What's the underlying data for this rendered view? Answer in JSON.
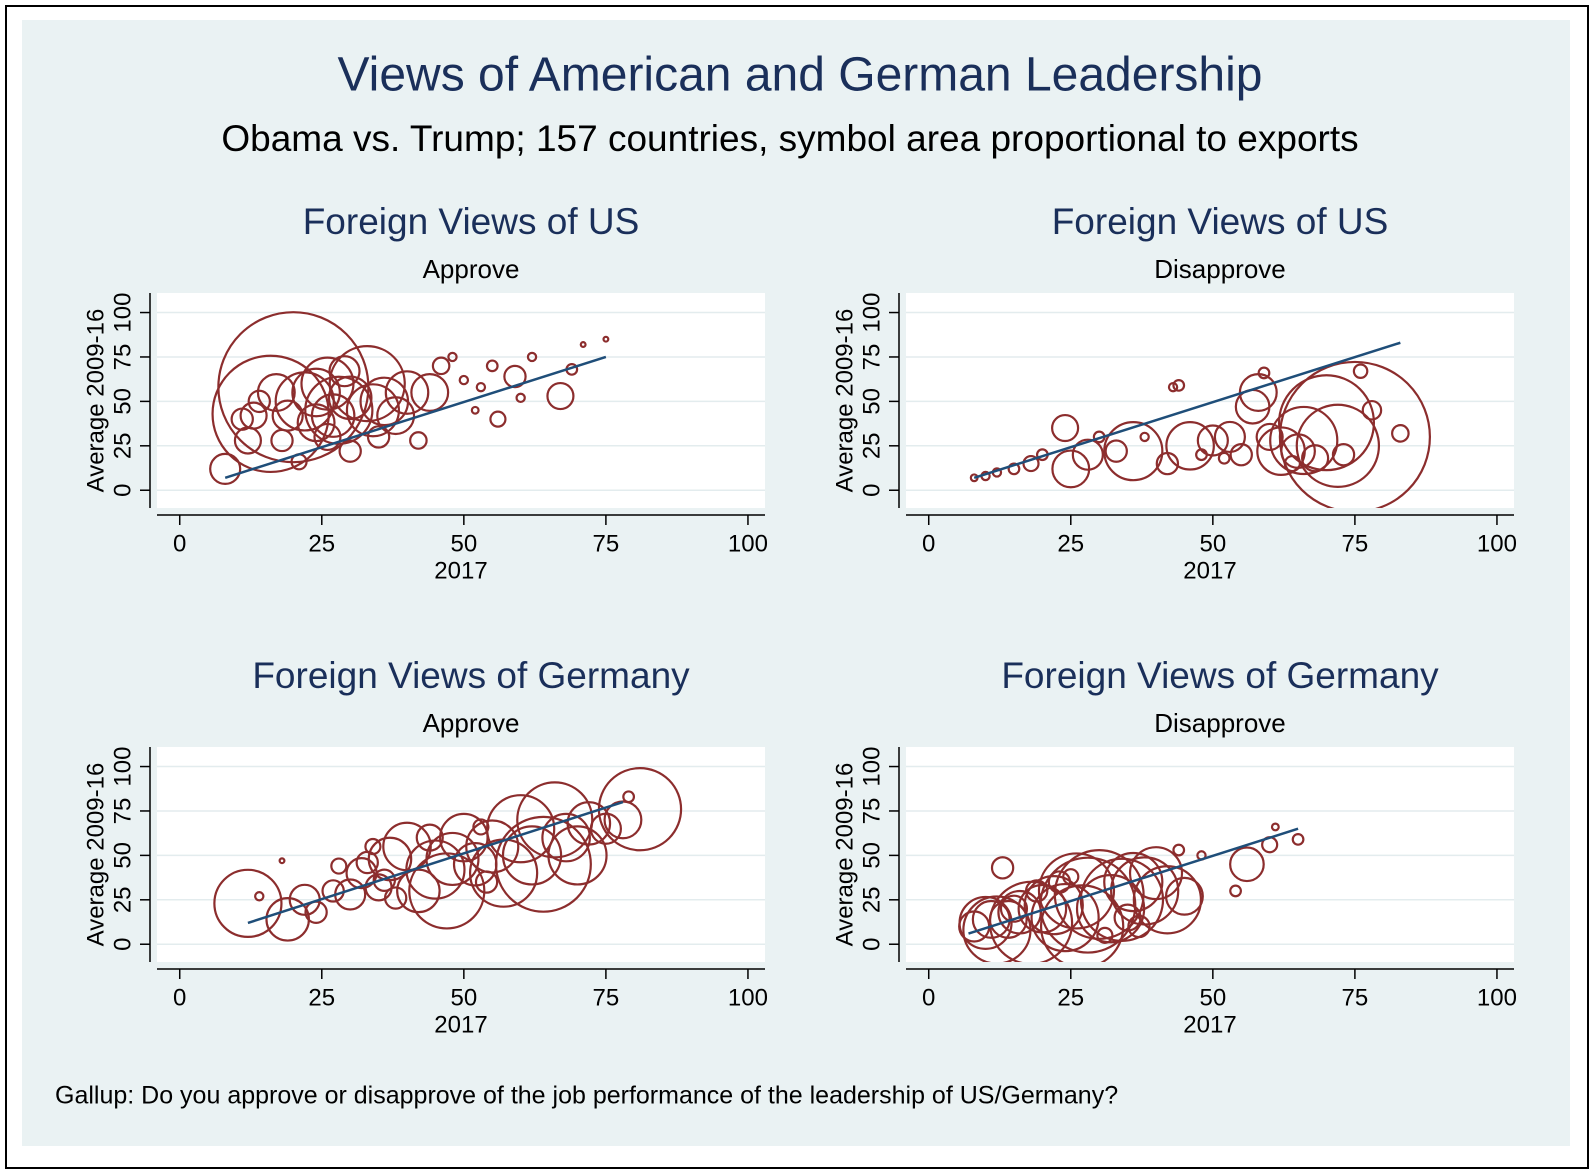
{
  "title": "Views of American and German Leadership",
  "subtitle": "Obama vs. Trump; 157 countries, symbol area proportional to exports",
  "note": "Gallup: Do you approve or disapprove of the job performance of the leadership of US/Germany?",
  "chart_data": [
    {
      "type": "scatter",
      "title": "Foreign Views of US",
      "subtitle": "Approve",
      "xlabel": "2017",
      "ylabel": "Average 2009-16",
      "xlim": [
        -4,
        103
      ],
      "ylim": [
        -10,
        111
      ],
      "xticks": [
        0,
        25,
        50,
        75,
        100
      ],
      "yticks": [
        0,
        25,
        50,
        75,
        100
      ],
      "grid": true,
      "series": [
        {
          "color": "#8c2d2d",
          "x": [
            20,
            16,
            8,
            13,
            17,
            22,
            24,
            26,
            28,
            30,
            33,
            34,
            36,
            38,
            40,
            44,
            29,
            24,
            26,
            30,
            18,
            21,
            12,
            11,
            14,
            46,
            48,
            50,
            53,
            55,
            56,
            59,
            62,
            67,
            69,
            71,
            75,
            52,
            60,
            42,
            35,
            27,
            19
          ],
          "values": [
            58,
            43,
            12,
            42,
            55,
            50,
            55,
            60,
            45,
            52,
            60,
            45,
            50,
            42,
            55,
            55,
            67,
            38,
            30,
            22,
            28,
            16,
            28,
            40,
            50,
            70,
            75,
            62,
            58,
            70,
            40,
            64,
            75,
            53,
            68,
            82,
            85,
            45,
            52,
            28,
            30,
            42,
            42
          ],
          "size": [
            100,
            60,
            4,
            3,
            6,
            15,
            10,
            12,
            20,
            8,
            25,
            12,
            10,
            6,
            8,
            6,
            4,
            6,
            3,
            2,
            2,
            1,
            3,
            2,
            2,
            1.2,
            0.3,
            0.3,
            0.3,
            0.5,
            1,
            2,
            0.3,
            3,
            0.5,
            0.1,
            0.1,
            0.2,
            0.3,
            1.2,
            2,
            8,
            4
          ]
        }
      ],
      "fit": {
        "color": "#1f4e79",
        "x": [
          8,
          75
        ],
        "values": [
          7,
          75
        ]
      }
    },
    {
      "type": "scatter",
      "title": "Foreign Views of US",
      "subtitle": "Disapprove",
      "xlabel": "2017",
      "ylabel": "Average 2009-16",
      "xlim": [
        -4,
        103
      ],
      "ylim": [
        -10,
        111
      ],
      "xticks": [
        0,
        25,
        50,
        75,
        100
      ],
      "yticks": [
        0,
        25,
        50,
        75,
        100
      ],
      "grid": true,
      "series": [
        {
          "color": "#8c2d2d",
          "x": [
            75,
            70,
            72,
            66,
            62,
            58,
            57,
            46,
            36,
            25,
            24,
            28,
            33,
            42,
            50,
            53,
            55,
            60,
            65,
            68,
            78,
            83,
            76,
            59,
            44,
            43,
            18,
            15,
            12,
            10,
            8,
            20,
            30,
            38,
            48,
            64,
            73,
            52
          ],
          "values": [
            30,
            38,
            25,
            28,
            22,
            55,
            47,
            25,
            22,
            12,
            35,
            20,
            22,
            15,
            28,
            30,
            20,
            30,
            22,
            18,
            45,
            32,
            67,
            66,
            59,
            58,
            15,
            12,
            10,
            8,
            7,
            20,
            30,
            30,
            20,
            15,
            20,
            18
          ],
          "size": [
            100,
            40,
            30,
            20,
            10,
            6,
            5,
            10,
            15,
            6,
            3,
            4,
            2,
            2,
            4,
            4,
            2,
            3,
            5,
            3,
            1.5,
            1.2,
            0.8,
            0.5,
            0.5,
            0.3,
            1,
            0.5,
            0.3,
            0.3,
            0.2,
            0.5,
            0.5,
            0.3,
            0.5,
            1,
            2,
            0.5
          ]
        }
      ],
      "fit": {
        "color": "#1f4e79",
        "x": [
          8,
          83
        ],
        "values": [
          7,
          83
        ]
      }
    },
    {
      "type": "scatter",
      "title": "Foreign Views of Germany",
      "subtitle": "Approve",
      "xlabel": "2017",
      "ylabel": "Average 2009-16",
      "xlim": [
        -4,
        103
      ],
      "ylim": [
        -10,
        111
      ],
      "xticks": [
        0,
        25,
        50,
        75,
        100
      ],
      "yticks": [
        0,
        25,
        50,
        75,
        100
      ],
      "grid": true,
      "series": [
        {
          "color": "#8c2d2d",
          "x": [
            12,
            19,
            22,
            24,
            27,
            30,
            32,
            35,
            37,
            40,
            42,
            45,
            47,
            48,
            50,
            52,
            55,
            57,
            60,
            62,
            64,
            66,
            68,
            70,
            72,
            75,
            78,
            81,
            14,
            18,
            28,
            33,
            36,
            38,
            44,
            53,
            79,
            54,
            34
          ],
          "values": [
            23,
            14,
            25,
            18,
            30,
            28,
            40,
            32,
            48,
            55,
            30,
            42,
            30,
            48,
            60,
            45,
            55,
            40,
            65,
            50,
            45,
            70,
            60,
            50,
            68,
            65,
            70,
            76,
            27,
            47,
            44,
            46,
            36,
            26,
            60,
            66,
            83,
            35,
            55
          ],
          "size": [
            20,
            8,
            4,
            2,
            2,
            4,
            4,
            3,
            8,
            10,
            8,
            15,
            25,
            12,
            10,
            8,
            12,
            20,
            20,
            15,
            40,
            25,
            10,
            15,
            8,
            4,
            6,
            30,
            0.3,
            0.1,
            1,
            2,
            2,
            2,
            3,
            1,
            0.5,
            2,
            1
          ]
        }
      ],
      "fit": {
        "color": "#1f4e79",
        "x": [
          12,
          78
        ],
        "values": [
          12,
          80
        ]
      }
    },
    {
      "type": "scatter",
      "title": "Foreign Views of Germany",
      "subtitle": "Disapprove",
      "xlabel": "2017",
      "ylabel": "Average 2009-16",
      "xlim": [
        -4,
        103
      ],
      "ylim": [
        -10,
        111
      ],
      "xticks": [
        0,
        25,
        50,
        75,
        100
      ],
      "yticks": [
        0,
        25,
        50,
        75,
        100
      ],
      "grid": true,
      "series": [
        {
          "color": "#8c2d2d",
          "x": [
            8,
            10,
            12,
            14,
            16,
            18,
            20,
            22,
            24,
            26,
            27,
            28,
            30,
            32,
            34,
            36,
            38,
            40,
            42,
            45,
            13,
            15,
            11,
            19,
            23,
            35,
            37,
            44,
            54,
            56,
            60,
            65,
            61,
            48,
            31,
            25
          ],
          "values": [
            10,
            12,
            8,
            14,
            18,
            12,
            20,
            22,
            15,
            30,
            10,
            22,
            28,
            20,
            25,
            35,
            30,
            40,
            25,
            27,
            43,
            20,
            14,
            30,
            35,
            15,
            10,
            53,
            30,
            45,
            56,
            59,
            66,
            50,
            5,
            38
          ],
          "size": [
            4,
            12,
            20,
            6,
            8,
            30,
            10,
            15,
            20,
            25,
            30,
            40,
            35,
            20,
            30,
            15,
            20,
            12,
            20,
            6,
            2,
            3,
            6,
            2,
            2,
            3,
            2,
            0.5,
            0.5,
            5,
            1,
            0.5,
            0.2,
            0.3,
            1,
            1
          ]
        }
      ],
      "fit": {
        "color": "#1f4e79",
        "x": [
          7,
          65
        ],
        "values": [
          6,
          65
        ]
      }
    }
  ]
}
